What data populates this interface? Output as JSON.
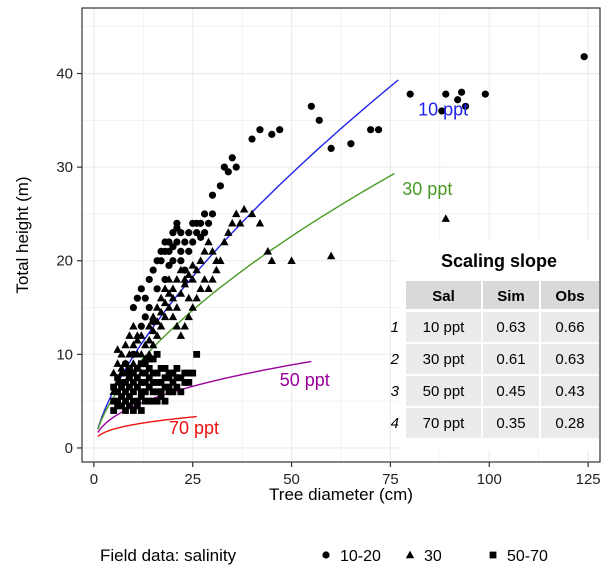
{
  "chart_data": {
    "type": "scatter",
    "xlabel": "Tree diameter (cm)",
    "ylabel": "Total height (m)",
    "xlim": [
      -3,
      128
    ],
    "ylim": [
      -1.5,
      47
    ],
    "xticks": [
      0,
      25,
      50,
      75,
      100,
      125
    ],
    "yticks": [
      0,
      10,
      20,
      30,
      40
    ],
    "grid": true,
    "legend": {
      "title": "Field data: salinity",
      "position": "bottom",
      "entries": [
        {
          "label": "10-20",
          "marker": "circle"
        },
        {
          "label": "30",
          "marker": "triangle"
        },
        {
          "label": "50-70",
          "marker": "square"
        }
      ]
    },
    "curves": [
      {
        "label": "10 ppt",
        "color": "#2222ee",
        "a": 2.05,
        "b": 0.68,
        "xmax": 77,
        "label_x": 82,
        "label_y": 35.5
      },
      {
        "label": "30 ppt",
        "color": "#4a9a24",
        "a": 2.0,
        "b": 0.62,
        "xmax": 76,
        "label_x": 78,
        "label_y": 27
      },
      {
        "label": "50 ppt",
        "color": "#990099",
        "a": 1.65,
        "b": 0.43,
        "xmax": 55,
        "label_x": 47,
        "label_y": 6.6
      },
      {
        "label": "70 ppt",
        "color": "#ee1111",
        "a": 1.22,
        "b": 0.31,
        "xmax": 26,
        "label_x": 19,
        "label_y": 1.5
      }
    ],
    "series": [
      {
        "name": "10-20",
        "marker": "circle",
        "points": [
          [
            8,
            9
          ],
          [
            10,
            10
          ],
          [
            12,
            13
          ],
          [
            13,
            14
          ],
          [
            14,
            15
          ],
          [
            15,
            13.5
          ],
          [
            16,
            17
          ],
          [
            17,
            20
          ],
          [
            18,
            21
          ],
          [
            19,
            22
          ],
          [
            20,
            23
          ],
          [
            21,
            24
          ],
          [
            22,
            20
          ],
          [
            23,
            19
          ],
          [
            24,
            23
          ],
          [
            25,
            24
          ],
          [
            26,
            24
          ],
          [
            27,
            24
          ],
          [
            28,
            25
          ],
          [
            30,
            27
          ],
          [
            32,
            28
          ],
          [
            33,
            30
          ],
          [
            34,
            29.5
          ],
          [
            35,
            31
          ],
          [
            36,
            30
          ],
          [
            40,
            33
          ],
          [
            42,
            34
          ],
          [
            45,
            33.5
          ],
          [
            47,
            34
          ],
          [
            55,
            36.5
          ],
          [
            57,
            35
          ],
          [
            60,
            32
          ],
          [
            65,
            32.5
          ],
          [
            70,
            34
          ],
          [
            72,
            34
          ],
          [
            80,
            37.8
          ],
          [
            88,
            36
          ],
          [
            89,
            37.8
          ],
          [
            92,
            37.2
          ],
          [
            93,
            38
          ],
          [
            94,
            36.5
          ],
          [
            99,
            37.8
          ],
          [
            124,
            41.8
          ],
          [
            10,
            15
          ],
          [
            11,
            16
          ],
          [
            12,
            17
          ],
          [
            13,
            16
          ],
          [
            14,
            18
          ],
          [
            15,
            19
          ],
          [
            16,
            20
          ],
          [
            17,
            21
          ],
          [
            18,
            22
          ],
          [
            19,
            21
          ],
          [
            20,
            20
          ],
          [
            21,
            22
          ],
          [
            22,
            21
          ],
          [
            18,
            18
          ],
          [
            19,
            19.5
          ],
          [
            20,
            21.5
          ],
          [
            21,
            23.5
          ],
          [
            22,
            23
          ],
          [
            23,
            22
          ],
          [
            24,
            21
          ],
          [
            25,
            22
          ],
          [
            26,
            23
          ],
          [
            27,
            22.5
          ],
          [
            28,
            23
          ],
          [
            29,
            24
          ],
          [
            30,
            25
          ]
        ]
      },
      {
        "name": "30",
        "marker": "triangle",
        "points": [
          [
            5,
            6
          ],
          [
            6,
            7
          ],
          [
            7,
            8
          ],
          [
            8,
            9
          ],
          [
            9,
            10
          ],
          [
            10,
            11
          ],
          [
            11,
            12
          ],
          [
            12,
            12
          ],
          [
            13,
            11
          ],
          [
            14,
            13
          ],
          [
            15,
            14
          ],
          [
            16,
            15
          ],
          [
            17,
            16
          ],
          [
            18,
            17
          ],
          [
            19,
            18
          ],
          [
            20,
            17
          ],
          [
            21,
            18
          ],
          [
            22,
            19
          ],
          [
            23,
            18
          ],
          [
            24,
            16
          ],
          [
            25,
            18
          ],
          [
            26,
            19
          ],
          [
            27,
            20
          ],
          [
            28,
            21
          ],
          [
            29,
            22
          ],
          [
            30,
            21
          ],
          [
            31,
            20
          ],
          [
            32,
            20
          ],
          [
            33,
            22
          ],
          [
            34,
            23
          ],
          [
            35,
            24
          ],
          [
            36,
            25
          ],
          [
            37,
            24
          ],
          [
            38,
            25.5
          ],
          [
            40,
            25
          ],
          [
            42,
            24
          ],
          [
            44,
            21
          ],
          [
            45,
            20
          ],
          [
            50,
            20
          ],
          [
            60,
            20.5
          ],
          [
            89,
            24.5
          ],
          [
            6,
            10.5
          ],
          [
            7,
            10
          ],
          [
            8,
            11
          ],
          [
            9,
            12
          ],
          [
            10,
            13
          ],
          [
            11,
            11.5
          ],
          [
            12,
            10
          ],
          [
            13,
            9
          ],
          [
            14,
            10
          ],
          [
            15,
            11
          ],
          [
            16,
            12
          ],
          [
            17,
            13
          ],
          [
            18,
            14
          ],
          [
            19,
            15
          ],
          [
            20,
            14
          ],
          [
            21,
            13
          ],
          [
            22,
            12
          ],
          [
            23,
            13
          ],
          [
            24,
            14
          ],
          [
            25,
            15
          ],
          [
            26,
            16
          ],
          [
            27,
            17
          ],
          [
            28,
            18
          ],
          [
            29,
            17
          ],
          [
            30,
            18
          ],
          [
            31,
            19
          ],
          [
            5,
            8
          ],
          [
            6,
            9
          ],
          [
            7,
            8.5
          ],
          [
            8,
            7
          ],
          [
            9,
            8
          ],
          [
            10,
            9
          ],
          [
            11,
            10
          ],
          [
            12,
            8
          ],
          [
            13,
            9.5
          ],
          [
            14,
            11.5
          ],
          [
            15,
            12.5
          ],
          [
            16,
            13.5
          ],
          [
            17,
            14.5
          ],
          [
            18,
            15.5
          ],
          [
            19,
            16.5
          ],
          [
            20,
            16
          ],
          [
            21,
            15
          ],
          [
            22,
            16.5
          ],
          [
            23,
            17.5
          ],
          [
            24,
            18.5
          ],
          [
            25,
            19.5
          ]
        ]
      },
      {
        "name": "50-70",
        "marker": "square",
        "points": [
          [
            5,
            4
          ],
          [
            6,
            5
          ],
          [
            6,
            6
          ],
          [
            7,
            4.5
          ],
          [
            7,
            6.5
          ],
          [
            8,
            5
          ],
          [
            8,
            7
          ],
          [
            9,
            5.5
          ],
          [
            9,
            7.5
          ],
          [
            10,
            6
          ],
          [
            10,
            4
          ],
          [
            11,
            6.5
          ],
          [
            11,
            5
          ],
          [
            12,
            7
          ],
          [
            12,
            5.5
          ],
          [
            13,
            6
          ],
          [
            13,
            8
          ],
          [
            14,
            6.5
          ],
          [
            14,
            7.5
          ],
          [
            15,
            5
          ],
          [
            15,
            7
          ],
          [
            16,
            6
          ],
          [
            16,
            8
          ],
          [
            17,
            7
          ],
          [
            17,
            5.5
          ],
          [
            18,
            6.5
          ],
          [
            18,
            8.5
          ],
          [
            19,
            7.5
          ],
          [
            19,
            6
          ],
          [
            20,
            7
          ],
          [
            20,
            8
          ],
          [
            21,
            6.5
          ],
          [
            22,
            7.5
          ],
          [
            23,
            8
          ],
          [
            24,
            7
          ],
          [
            25,
            8
          ],
          [
            26,
            10
          ],
          [
            5,
            5
          ],
          [
            6,
            4.5
          ],
          [
            7,
            5.5
          ],
          [
            8,
            4
          ],
          [
            8,
            6
          ],
          [
            9,
            4.5
          ],
          [
            9,
            6.5
          ],
          [
            10,
            5
          ],
          [
            10,
            7
          ],
          [
            11,
            4.5
          ],
          [
            11,
            7.5
          ],
          [
            12,
            4
          ],
          [
            12,
            6
          ],
          [
            13,
            5
          ],
          [
            13,
            7
          ],
          [
            14,
            5
          ],
          [
            14,
            8.5
          ],
          [
            15,
            6
          ],
          [
            15,
            8
          ],
          [
            16,
            7
          ],
          [
            16,
            5
          ],
          [
            17,
            6
          ],
          [
            17,
            8.5
          ],
          [
            18,
            5
          ],
          [
            18,
            7.5
          ],
          [
            19,
            8
          ],
          [
            19,
            6.5
          ],
          [
            20,
            6
          ],
          [
            21,
            7.5
          ],
          [
            21,
            8.5
          ],
          [
            22,
            6
          ],
          [
            23,
            7
          ],
          [
            24,
            8
          ],
          [
            5,
            6.5
          ],
          [
            6,
            7.5
          ],
          [
            7,
            7
          ],
          [
            8,
            8
          ],
          [
            9,
            8.5
          ],
          [
            10,
            8
          ],
          [
            11,
            8.5
          ],
          [
            12,
            9
          ],
          [
            13,
            9
          ],
          [
            14,
            9.5
          ],
          [
            15,
            9.5
          ],
          [
            16,
            10
          ]
        ]
      }
    ],
    "table": {
      "title": "Scaling slope",
      "columns": [
        "",
        "Sal",
        "Sim",
        "Obs"
      ],
      "rows": [
        [
          "1",
          "10 ppt",
          "0.63",
          "0.66"
        ],
        [
          "2",
          "30 ppt",
          "0.61",
          "0.63"
        ],
        [
          "3",
          "50 ppt",
          "0.45",
          "0.43"
        ],
        [
          "4",
          "70 ppt",
          "0.35",
          "0.28"
        ]
      ]
    },
    "colors": {
      "panel_background": "#ffffff",
      "panel_border": "#333333",
      "gridline": "#ebebeb",
      "points": "#000000",
      "table_header_fill": "#d9d9d9",
      "table_body_fill": "#ebebeb"
    }
  }
}
